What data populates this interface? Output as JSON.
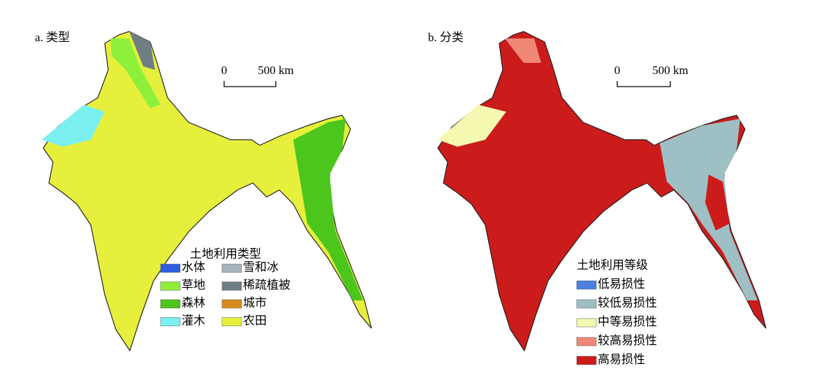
{
  "panels": [
    {
      "label": "a. 类型",
      "scale": {
        "start": "0",
        "end": "500 km"
      },
      "legend": {
        "title": "土地利用类型",
        "items": [
          {
            "name": "水体",
            "color": "#2f5fe0"
          },
          {
            "name": "草地",
            "color": "#8ef03a"
          },
          {
            "name": "森林",
            "color": "#4cc61c"
          },
          {
            "name": "灌木",
            "color": "#7af0f0"
          },
          {
            "name": "雪和冰",
            "color": "#aab4bc"
          },
          {
            "name": "稀疏植被",
            "color": "#6e7e84"
          },
          {
            "name": "城市",
            "color": "#d98a1e"
          },
          {
            "name": "农田",
            "color": "#e6f03c"
          }
        ]
      }
    },
    {
      "label": "b. 分类",
      "scale": {
        "start": "0",
        "end": "500 km"
      },
      "legend": {
        "title": "土地利用等级",
        "items": [
          {
            "name": "低易损性",
            "color": "#4a7fe0"
          },
          {
            "name": "较低易损性",
            "color": "#9ebfc4"
          },
          {
            "name": "中等易损性",
            "color": "#f4f8b0"
          },
          {
            "name": "较高易损性",
            "color": "#f08878"
          },
          {
            "name": "高易损性",
            "color": "#cc1b1b"
          }
        ]
      }
    }
  ]
}
